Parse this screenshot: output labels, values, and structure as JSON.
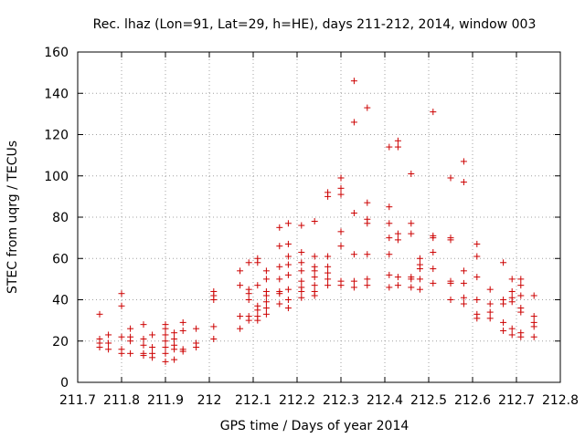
{
  "chart_data": {
    "type": "scatter",
    "title": "Rec. lhaz (Lon=91, Lat=29, h=HE), days 211-212, 2014, window 003",
    "xlabel": "GPS time / Days of year 2014",
    "ylabel": "STEC from uqrg / TECUs",
    "xlim": [
      211.7,
      212.8
    ],
    "ylim": [
      0,
      160
    ],
    "xticks": [
      "211.7",
      "211.8",
      "211.9",
      "212",
      "212.1",
      "212.2",
      "212.3",
      "212.4",
      "212.5",
      "212.6",
      "212.7",
      "212.8"
    ],
    "yticks": [
      "0",
      "20",
      "40",
      "60",
      "80",
      "100",
      "120",
      "140",
      "160"
    ],
    "grid": true,
    "marker": "+",
    "color": "#cc0000",
    "series": [
      {
        "name": "STEC",
        "points": [
          [
            211.75,
            33
          ],
          [
            211.75,
            21
          ],
          [
            211.75,
            19
          ],
          [
            211.75,
            17
          ],
          [
            211.77,
            23
          ],
          [
            211.77,
            19
          ],
          [
            211.77,
            16
          ],
          [
            211.8,
            43
          ],
          [
            211.8,
            37
          ],
          [
            211.8,
            22
          ],
          [
            211.8,
            16
          ],
          [
            211.8,
            14
          ],
          [
            211.82,
            26
          ],
          [
            211.82,
            22
          ],
          [
            211.82,
            20
          ],
          [
            211.82,
            14
          ],
          [
            211.85,
            28
          ],
          [
            211.85,
            21
          ],
          [
            211.85,
            18
          ],
          [
            211.85,
            14
          ],
          [
            211.85,
            13
          ],
          [
            211.87,
            23
          ],
          [
            211.87,
            17
          ],
          [
            211.87,
            14
          ],
          [
            211.87,
            12
          ],
          [
            211.9,
            28
          ],
          [
            211.9,
            26
          ],
          [
            211.9,
            23
          ],
          [
            211.9,
            20
          ],
          [
            211.9,
            17
          ],
          [
            211.9,
            14
          ],
          [
            211.9,
            10
          ],
          [
            211.92,
            24
          ],
          [
            211.92,
            21
          ],
          [
            211.92,
            18
          ],
          [
            211.92,
            16
          ],
          [
            211.92,
            11
          ],
          [
            211.94,
            29
          ],
          [
            211.94,
            25
          ],
          [
            211.94,
            16
          ],
          [
            211.94,
            15
          ],
          [
            211.97,
            26
          ],
          [
            211.97,
            19
          ],
          [
            211.97,
            17
          ],
          [
            212.01,
            44
          ],
          [
            212.01,
            42
          ],
          [
            212.01,
            40
          ],
          [
            212.01,
            27
          ],
          [
            212.01,
            21
          ],
          [
            212.07,
            54
          ],
          [
            212.07,
            47
          ],
          [
            212.07,
            32
          ],
          [
            212.07,
            26
          ],
          [
            212.09,
            58
          ],
          [
            212.09,
            45
          ],
          [
            212.09,
            43
          ],
          [
            212.09,
            40
          ],
          [
            212.09,
            32
          ],
          [
            212.09,
            30
          ],
          [
            212.11,
            60
          ],
          [
            212.11,
            58
          ],
          [
            212.11,
            47
          ],
          [
            212.11,
            37
          ],
          [
            212.11,
            35
          ],
          [
            212.11,
            32
          ],
          [
            212.11,
            30
          ],
          [
            212.13,
            54
          ],
          [
            212.13,
            50
          ],
          [
            212.13,
            44
          ],
          [
            212.13,
            42
          ],
          [
            212.13,
            39
          ],
          [
            212.13,
            36
          ],
          [
            212.13,
            33
          ],
          [
            212.16,
            75
          ],
          [
            212.16,
            66
          ],
          [
            212.16,
            56
          ],
          [
            212.16,
            50
          ],
          [
            212.16,
            44
          ],
          [
            212.16,
            43
          ],
          [
            212.16,
            38
          ],
          [
            212.18,
            77
          ],
          [
            212.18,
            67
          ],
          [
            212.18,
            61
          ],
          [
            212.18,
            57
          ],
          [
            212.18,
            52
          ],
          [
            212.18,
            45
          ],
          [
            212.18,
            40
          ],
          [
            212.18,
            36
          ],
          [
            212.21,
            76
          ],
          [
            212.21,
            63
          ],
          [
            212.21,
            58
          ],
          [
            212.21,
            54
          ],
          [
            212.21,
            49
          ],
          [
            212.21,
            46
          ],
          [
            212.21,
            44
          ],
          [
            212.21,
            41
          ],
          [
            212.24,
            78
          ],
          [
            212.24,
            61
          ],
          [
            212.24,
            56
          ],
          [
            212.24,
            54
          ],
          [
            212.24,
            51
          ],
          [
            212.24,
            47
          ],
          [
            212.24,
            44
          ],
          [
            212.24,
            42
          ],
          [
            212.27,
            92
          ],
          [
            212.27,
            90
          ],
          [
            212.27,
            61
          ],
          [
            212.27,
            56
          ],
          [
            212.27,
            53
          ],
          [
            212.27,
            50
          ],
          [
            212.27,
            47
          ],
          [
            212.3,
            99
          ],
          [
            212.3,
            94
          ],
          [
            212.3,
            91
          ],
          [
            212.3,
            73
          ],
          [
            212.3,
            66
          ],
          [
            212.3,
            49
          ],
          [
            212.3,
            47
          ],
          [
            212.33,
            146
          ],
          [
            212.33,
            126
          ],
          [
            212.33,
            82
          ],
          [
            212.33,
            62
          ],
          [
            212.33,
            49
          ],
          [
            212.33,
            46
          ],
          [
            212.36,
            133
          ],
          [
            212.36,
            87
          ],
          [
            212.36,
            79
          ],
          [
            212.36,
            77
          ],
          [
            212.36,
            62
          ],
          [
            212.36,
            50
          ],
          [
            212.36,
            47
          ],
          [
            212.41,
            114
          ],
          [
            212.41,
            85
          ],
          [
            212.41,
            77
          ],
          [
            212.41,
            70
          ],
          [
            212.41,
            62
          ],
          [
            212.41,
            52
          ],
          [
            212.41,
            46
          ],
          [
            212.43,
            117
          ],
          [
            212.43,
            114
          ],
          [
            212.43,
            72
          ],
          [
            212.43,
            69
          ],
          [
            212.43,
            51
          ],
          [
            212.43,
            47
          ],
          [
            212.46,
            101
          ],
          [
            212.46,
            77
          ],
          [
            212.46,
            72
          ],
          [
            212.46,
            51
          ],
          [
            212.46,
            50
          ],
          [
            212.46,
            46
          ],
          [
            212.48,
            60
          ],
          [
            212.48,
            57
          ],
          [
            212.48,
            55
          ],
          [
            212.48,
            50
          ],
          [
            212.48,
            45
          ],
          [
            212.51,
            131
          ],
          [
            212.51,
            71
          ],
          [
            212.51,
            70
          ],
          [
            212.51,
            63
          ],
          [
            212.51,
            55
          ],
          [
            212.51,
            48
          ],
          [
            212.55,
            99
          ],
          [
            212.55,
            70
          ],
          [
            212.55,
            69
          ],
          [
            212.55,
            49
          ],
          [
            212.55,
            48
          ],
          [
            212.55,
            40
          ],
          [
            212.58,
            107
          ],
          [
            212.58,
            97
          ],
          [
            212.58,
            54
          ],
          [
            212.58,
            48
          ],
          [
            212.58,
            41
          ],
          [
            212.58,
            38
          ],
          [
            212.61,
            67
          ],
          [
            212.61,
            61
          ],
          [
            212.61,
            51
          ],
          [
            212.61,
            40
          ],
          [
            212.61,
            33
          ],
          [
            212.61,
            31
          ],
          [
            212.64,
            45
          ],
          [
            212.64,
            38
          ],
          [
            212.64,
            34
          ],
          [
            212.64,
            31
          ],
          [
            212.67,
            58
          ],
          [
            212.67,
            40
          ],
          [
            212.67,
            38
          ],
          [
            212.67,
            29
          ],
          [
            212.67,
            25
          ],
          [
            212.69,
            50
          ],
          [
            212.69,
            44
          ],
          [
            212.69,
            41
          ],
          [
            212.69,
            39
          ],
          [
            212.69,
            26
          ],
          [
            212.69,
            23
          ],
          [
            212.71,
            50
          ],
          [
            212.71,
            47
          ],
          [
            212.71,
            42
          ],
          [
            212.71,
            36
          ],
          [
            212.71,
            34
          ],
          [
            212.71,
            24
          ],
          [
            212.71,
            22
          ],
          [
            212.74,
            42
          ],
          [
            212.74,
            32
          ],
          [
            212.74,
            29
          ],
          [
            212.74,
            27
          ],
          [
            212.74,
            22
          ]
        ]
      }
    ]
  }
}
